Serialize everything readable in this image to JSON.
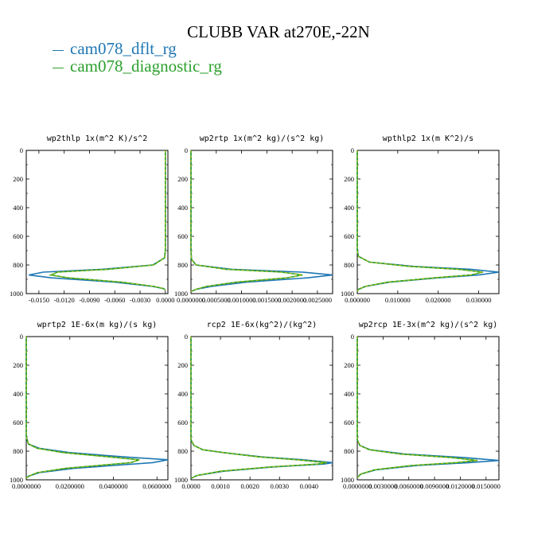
{
  "page": {
    "title": "CLUBB VAR at270E,-22N",
    "legend": [
      {
        "label": "cam078_dflt_rg",
        "color": "#1f77b4"
      },
      {
        "label": "cam078_diagnostic_rg",
        "color": "#2ca02c"
      }
    ],
    "colors": {
      "dflt": "#1f77b4",
      "diagnostic": "#2ca02c",
      "diagnostic_dash": "#b7c400"
    }
  },
  "chart_data": [
    {
      "type": "line",
      "title": "wp2thlp  1x(m^2 K)/s^2",
      "ylim": [
        1000,
        0
      ],
      "yticks": [
        "0",
        "200",
        "400",
        "600",
        "800",
        "1000"
      ],
      "xlim": [
        -0.0165,
        0.0003
      ],
      "xticks": [
        -0.015,
        -0.012,
        -0.009,
        -0.006,
        -0.003,
        0.0
      ],
      "xticklabels": [
        "-0.0150",
        "-0.0120",
        "-0.0090",
        "-0.0060",
        "-0.0030",
        "0.0000"
      ],
      "series": [
        {
          "name": "cam078_dflt_rg",
          "y": [
            0,
            700,
            750,
            800,
            830,
            850,
            870,
            890,
            920,
            950,
            965,
            975
          ],
          "x": [
            0.0,
            0.0,
            -0.0001,
            -0.0015,
            -0.0075,
            -0.0145,
            -0.0162,
            -0.0135,
            -0.006,
            -0.0015,
            -0.0002,
            0.0
          ]
        },
        {
          "name": "cam078_diagnostic_rg",
          "y": [
            0,
            700,
            750,
            800,
            830,
            850,
            870,
            890,
            920,
            950,
            965,
            975
          ],
          "x": [
            0.0,
            0.0,
            -0.0001,
            -0.0014,
            -0.0068,
            -0.0128,
            -0.0136,
            -0.0115,
            -0.0052,
            -0.0013,
            -0.0002,
            0.0
          ]
        }
      ]
    },
    {
      "type": "line",
      "title": "wp2rtp  1x(m^2 kg)/(s^2 kg)",
      "ylim": [
        1000,
        0
      ],
      "yticks": [
        "0",
        "200",
        "400",
        "600",
        "800",
        "1000"
      ],
      "xlim": [
        0.0,
        0.0028
      ],
      "xticks": [
        0.0,
        0.0005,
        0.001,
        0.0015,
        0.002,
        0.0025
      ],
      "xticklabels": [
        "0.0000000",
        "0.0005000",
        "0.0010000",
        "0.0015000",
        "0.0020000",
        "0.0025000"
      ],
      "series": [
        {
          "name": "cam078_dflt_rg",
          "y": [
            0,
            700,
            760,
            800,
            830,
            850,
            870,
            890,
            920,
            950,
            970,
            985
          ],
          "x": [
            0.0,
            0.0,
            1e-05,
            0.0001,
            0.0008,
            0.0022,
            0.0028,
            0.0023,
            0.0011,
            0.0004,
            0.0001,
            0.0
          ]
        },
        {
          "name": "cam078_diagnostic_rg",
          "y": [
            0,
            700,
            760,
            800,
            830,
            850,
            870,
            890,
            920,
            950,
            970,
            985
          ],
          "x": [
            0.0,
            0.0,
            1e-05,
            0.0001,
            0.0007,
            0.0018,
            0.0022,
            0.0019,
            0.0009,
            0.0003,
            0.0001,
            0.0
          ]
        }
      ]
    },
    {
      "type": "line",
      "title": "wpthlp2  1x(m K^2)/s",
      "ylim": [
        1000,
        0
      ],
      "yticks": [
        "0",
        "200",
        "400",
        "600",
        "800",
        "1000"
      ],
      "xlim": [
        0.0,
        0.035
      ],
      "xticks": [
        0.0,
        0.01,
        0.02,
        0.03
      ],
      "xticklabels": [
        "0.000000",
        "0.010000",
        "0.020000",
        "0.030000"
      ],
      "series": [
        {
          "name": "cam078_dflt_rg",
          "y": [
            0,
            700,
            740,
            780,
            810,
            830,
            850,
            870,
            890,
            920,
            950,
            970,
            985
          ],
          "x": [
            0.0,
            0.0,
            0.0003,
            0.003,
            0.014,
            0.028,
            0.035,
            0.03,
            0.02,
            0.008,
            0.002,
            0.0003,
            0.0
          ]
        },
        {
          "name": "cam078_diagnostic_rg",
          "y": [
            0,
            700,
            740,
            780,
            810,
            830,
            850,
            870,
            890,
            920,
            950,
            970,
            985
          ],
          "x": [
            0.0,
            0.0,
            0.0003,
            0.003,
            0.013,
            0.025,
            0.031,
            0.028,
            0.019,
            0.0075,
            0.0019,
            0.0003,
            0.0
          ]
        }
      ]
    },
    {
      "type": "line",
      "title": "wprtp2  1E-6x(m kg)/(s kg)",
      "ylim": [
        1000,
        0
      ],
      "yticks": [
        "0",
        "200",
        "400",
        "600",
        "800",
        "1000"
      ],
      "xlim": [
        0.0,
        0.065
      ],
      "xticks": [
        0.0,
        0.02,
        0.04,
        0.06
      ],
      "xticklabels": [
        "0.0000000",
        "0.0200000",
        "0.0400000",
        "0.0600000"
      ],
      "series": [
        {
          "name": "cam078_dflt_rg",
          "y": [
            0,
            700,
            750,
            780,
            810,
            840,
            860,
            880,
            900,
            920,
            950,
            975,
            990
          ],
          "x": [
            0.0,
            0.0,
            0.001,
            0.006,
            0.02,
            0.045,
            0.065,
            0.058,
            0.04,
            0.022,
            0.006,
            0.001,
            0.0
          ]
        },
        {
          "name": "cam078_diagnostic_rg",
          "y": [
            0,
            700,
            750,
            780,
            810,
            840,
            860,
            880,
            900,
            920,
            950,
            975,
            990
          ],
          "x": [
            0.0,
            0.0,
            0.001,
            0.005,
            0.017,
            0.038,
            0.052,
            0.048,
            0.033,
            0.018,
            0.005,
            0.001,
            0.0
          ]
        }
      ]
    },
    {
      "type": "line",
      "title": "rcp2  1E-6x(kg^2)/(kg^2)",
      "ylim": [
        1000,
        0
      ],
      "yticks": [
        "0",
        "200",
        "400",
        "600",
        "800",
        "1000"
      ],
      "xlim": [
        0.0,
        0.0048
      ],
      "xticks": [
        0.0,
        0.001,
        0.002,
        0.003,
        0.004
      ],
      "xticklabels": [
        "0.0000",
        "0.0010",
        "0.0020",
        "0.0030",
        "0.0040"
      ],
      "series": [
        {
          "name": "cam078_dflt_rg",
          "y": [
            0,
            720,
            760,
            790,
            810,
            840,
            860,
            880,
            890,
            910,
            940,
            970,
            990
          ],
          "x": [
            0.0,
            0.0,
            0.0001,
            0.0004,
            0.0011,
            0.0024,
            0.0038,
            0.0048,
            0.0045,
            0.0028,
            0.0011,
            0.0002,
            0.0
          ]
        },
        {
          "name": "cam078_diagnostic_rg",
          "y": [
            0,
            720,
            760,
            790,
            810,
            840,
            860,
            880,
            890,
            910,
            940,
            970,
            990
          ],
          "x": [
            0.0,
            0.0,
            0.0001,
            0.0004,
            0.0011,
            0.0023,
            0.0036,
            0.0046,
            0.0043,
            0.0027,
            0.001,
            0.0002,
            0.0
          ]
        }
      ]
    },
    {
      "type": "line",
      "title": "wp2rcp  1E-3x(m^2 kg)/(s^2 kg)",
      "ylim": [
        1000,
        0
      ],
      "yticks": [
        "0",
        "200",
        "400",
        "600",
        "800",
        "1000"
      ],
      "xlim": [
        0.0,
        0.0165
      ],
      "xticks": [
        0.0,
        0.003,
        0.006,
        0.009,
        0.012,
        0.015
      ],
      "xticklabels": [
        "0.0000000",
        "0.0030000",
        "0.0060000",
        "0.0090000",
        "0.0120000",
        "0.0150000"
      ],
      "series": [
        {
          "name": "cam078_dflt_rg",
          "y": [
            0,
            720,
            760,
            790,
            820,
            845,
            865,
            880,
            900,
            930,
            960,
            985
          ],
          "x": [
            0.0,
            0.0,
            0.0003,
            0.0015,
            0.0055,
            0.0125,
            0.0165,
            0.013,
            0.007,
            0.0022,
            0.0004,
            0.0
          ]
        },
        {
          "name": "cam078_diagnostic_rg",
          "y": [
            0,
            720,
            760,
            790,
            820,
            845,
            865,
            880,
            900,
            930,
            960,
            985
          ],
          "x": [
            0.0,
            0.0,
            0.0003,
            0.0014,
            0.005,
            0.011,
            0.014,
            0.0115,
            0.0063,
            0.002,
            0.0004,
            0.0
          ]
        }
      ]
    }
  ]
}
